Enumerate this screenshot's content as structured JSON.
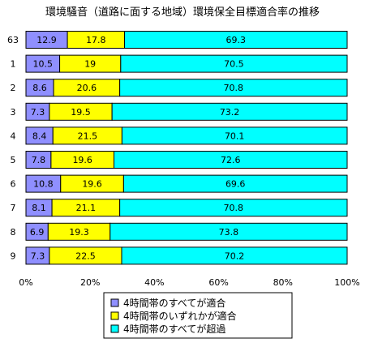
{
  "chart_data": {
    "type": "bar",
    "orientation": "horizontal",
    "stacked": "percent",
    "title": "環境騒音（道路に面する地域）環境保全目標適合率の推移",
    "categories": [
      "63",
      "1",
      "2",
      "3",
      "4",
      "5",
      "6",
      "7",
      "8",
      "9"
    ],
    "series": [
      {
        "name": "4時間帯のすべてが適合",
        "color": "#8f8fff",
        "values": [
          12.9,
          10.5,
          8.6,
          7.3,
          8.4,
          7.8,
          10.8,
          8.1,
          6.9,
          7.3
        ]
      },
      {
        "name": "4時間帯のいずれかが適合",
        "color": "#ffff00",
        "values": [
          17.8,
          19,
          20.6,
          19.5,
          21.5,
          19.6,
          19.6,
          21.1,
          19.3,
          22.5
        ]
      },
      {
        "name": "4時間帯のすべてが超過",
        "color": "#00ffff",
        "values": [
          69.3,
          70.5,
          70.8,
          73.2,
          70.1,
          72.6,
          69.6,
          70.8,
          73.8,
          70.2
        ]
      }
    ],
    "xlim": [
      0,
      100
    ],
    "x_ticks": [
      "0%",
      "20%",
      "40%",
      "60%",
      "80%",
      "100%"
    ],
    "grid": false,
    "legend_position": "bottom-center"
  }
}
